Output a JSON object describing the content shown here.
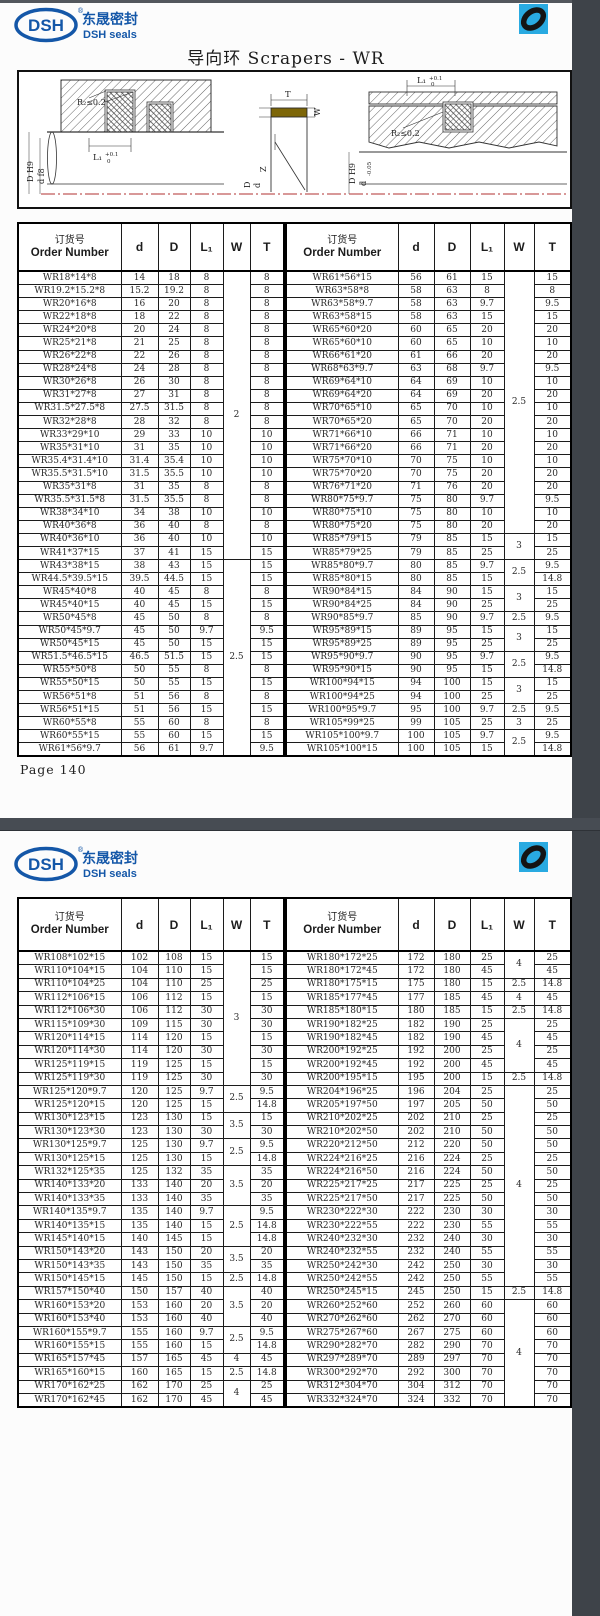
{
  "brand": {
    "logo_text": "DSH",
    "logo_cn": "东晟密封",
    "logo_en": "DSH seals",
    "registered": "®"
  },
  "tables": {
    "header": {
      "order_cn": "订货号",
      "order_en": "Order Number",
      "cols": [
        "d",
        "D",
        "L₁",
        "W",
        "T"
      ]
    }
  },
  "page1": {
    "title": "导向环 Scrapers - WR",
    "page_label": "Page 140",
    "drawing": {
      "r2": "R₂≤0.2",
      "l1": "L₁",
      "tol_top": "+0.1",
      "tol_bot": "0",
      "t": "T",
      "w": "W",
      "z": "Z",
      "d_h9": "D H9",
      "d_f8": "d f8",
      "d_cap": "D",
      "d_low": "d",
      "d_tol_top": "0",
      "d_tol_bot": "-0.05"
    },
    "left_table": {
      "rows": [
        [
          "WR18*14*8",
          "14",
          "18",
          "8",
          "8"
        ],
        [
          "WR19.2*15.2*8",
          "15.2",
          "19.2",
          "8",
          "8"
        ],
        [
          "WR20*16*8",
          "16",
          "20",
          "8",
          "8"
        ],
        [
          "WR22*18*8",
          "18",
          "22",
          "8",
          "8"
        ],
        [
          "WR24*20*8",
          "20",
          "24",
          "8",
          "8"
        ],
        [
          "WR25*21*8",
          "21",
          "25",
          "8",
          "8"
        ],
        [
          "WR26*22*8",
          "22",
          "26",
          "8",
          "8"
        ],
        [
          "WR28*24*8",
          "24",
          "28",
          "8",
          "8"
        ],
        [
          "WR30*26*8",
          "26",
          "30",
          "8",
          "8"
        ],
        [
          "WR31*27*8",
          "27",
          "31",
          "8",
          "8"
        ],
        [
          "WR31.5*27.5*8",
          "27.5",
          "31.5",
          "8",
          "8"
        ],
        [
          "WR32*28*8",
          "28",
          "32",
          "8",
          "8"
        ],
        [
          "WR33*29*10",
          "29",
          "33",
          "10",
          "10"
        ],
        [
          "WR35*31*10",
          "31",
          "35",
          "10",
          "10"
        ],
        [
          "WR35.4*31.4*10",
          "31.4",
          "35.4",
          "10",
          "10"
        ],
        [
          "WR35.5*31.5*10",
          "31.5",
          "35.5",
          "10",
          "10"
        ],
        [
          "WR35*31*8",
          "31",
          "35",
          "8",
          "8"
        ],
        [
          "WR35.5*31.5*8",
          "31.5",
          "35.5",
          "8",
          "8"
        ],
        [
          "WR38*34*10",
          "34",
          "38",
          "10",
          "10"
        ],
        [
          "WR40*36*8",
          "36",
          "40",
          "8",
          "8"
        ],
        [
          "WR40*36*10",
          "36",
          "40",
          "10",
          "10"
        ],
        [
          "WR41*37*15",
          "37",
          "41",
          "15",
          "15"
        ],
        [
          "WR43*38*15",
          "38",
          "43",
          "15",
          "15"
        ],
        [
          "WR44.5*39.5*15",
          "39.5",
          "44.5",
          "15",
          "15"
        ],
        [
          "WR45*40*8",
          "40",
          "45",
          "8",
          "8"
        ],
        [
          "WR45*40*15",
          "40",
          "45",
          "15",
          "15"
        ],
        [
          "WR50*45*8",
          "45",
          "50",
          "8",
          "8"
        ],
        [
          "WR50*45*9.7",
          "45",
          "50",
          "9.7",
          "9.5"
        ],
        [
          "WR50*45*15",
          "45",
          "50",
          "15",
          "15"
        ],
        [
          "WR51.5*46.5*15",
          "46.5",
          "51.5",
          "15",
          "15"
        ],
        [
          "WR55*50*8",
          "50",
          "55",
          "8",
          "8"
        ],
        [
          "WR55*50*15",
          "50",
          "55",
          "15",
          "15"
        ],
        [
          "WR56*51*8",
          "51",
          "56",
          "8",
          "8"
        ],
        [
          "WR56*51*15",
          "51",
          "56",
          "15",
          "15"
        ],
        [
          "WR60*55*8",
          "55",
          "60",
          "8",
          "8"
        ],
        [
          "WR60*55*15",
          "55",
          "60",
          "15",
          "15"
        ],
        [
          "WR61*56*9.7",
          "56",
          "61",
          "9.7",
          "9.5"
        ]
      ],
      "w_spans": [
        [
          "2",
          22
        ],
        [
          "2.5",
          15
        ]
      ]
    },
    "right_table": {
      "rows": [
        [
          "WR61*56*15",
          "56",
          "61",
          "15",
          "15"
        ],
        [
          "WR63*58*8",
          "58",
          "63",
          "8",
          "8"
        ],
        [
          "WR63*58*9.7",
          "58",
          "63",
          "9.7",
          "9.5"
        ],
        [
          "WR63*58*15",
          "58",
          "63",
          "15",
          "15"
        ],
        [
          "WR65*60*20",
          "60",
          "65",
          "20",
          "20"
        ],
        [
          "WR65*60*10",
          "60",
          "65",
          "10",
          "10"
        ],
        [
          "WR66*61*20",
          "61",
          "66",
          "20",
          "20"
        ],
        [
          "WR68*63*9.7",
          "63",
          "68",
          "9.7",
          "9.5"
        ],
        [
          "WR69*64*10",
          "64",
          "69",
          "10",
          "10"
        ],
        [
          "WR69*64*20",
          "64",
          "69",
          "20",
          "20"
        ],
        [
          "WR70*65*10",
          "65",
          "70",
          "10",
          "10"
        ],
        [
          "WR70*65*20",
          "65",
          "70",
          "20",
          "20"
        ],
        [
          "WR71*66*10",
          "66",
          "71",
          "10",
          "10"
        ],
        [
          "WR71*66*20",
          "66",
          "71",
          "20",
          "20"
        ],
        [
          "WR75*70*10",
          "70",
          "75",
          "10",
          "10"
        ],
        [
          "WR75*70*20",
          "70",
          "75",
          "20",
          "20"
        ],
        [
          "WR76*71*20",
          "71",
          "76",
          "20",
          "20"
        ],
        [
          "WR80*75*9.7",
          "75",
          "80",
          "9.7",
          "9.5"
        ],
        [
          "WR80*75*10",
          "75",
          "80",
          "10",
          "10"
        ],
        [
          "WR80*75*20",
          "75",
          "80",
          "20",
          "20"
        ],
        [
          "WR85*79*15",
          "79",
          "85",
          "15",
          "15"
        ],
        [
          "WR85*79*25",
          "79",
          "85",
          "25",
          "25"
        ],
        [
          "WR85*80*9.7",
          "80",
          "85",
          "9.7",
          "9.5"
        ],
        [
          "WR85*80*15",
          "80",
          "85",
          "15",
          "14.8"
        ],
        [
          "WR90*84*15",
          "84",
          "90",
          "15",
          "15"
        ],
        [
          "WR90*84*25",
          "84",
          "90",
          "25",
          "25"
        ],
        [
          "WR90*85*9.7",
          "85",
          "90",
          "9.7",
          "9.5"
        ],
        [
          "WR95*89*15",
          "89",
          "95",
          "15",
          "15"
        ],
        [
          "WR95*89*25",
          "89",
          "95",
          "25",
          "25"
        ],
        [
          "WR95*90*9.7",
          "90",
          "95",
          "9.7",
          "9.5"
        ],
        [
          "WR95*90*15",
          "90",
          "95",
          "15",
          "14.8"
        ],
        [
          "WR100*94*15",
          "94",
          "100",
          "15",
          "15"
        ],
        [
          "WR100*94*25",
          "94",
          "100",
          "25",
          "25"
        ],
        [
          "WR100*95*9.7",
          "95",
          "100",
          "9.7",
          "9.5"
        ],
        [
          "WR105*99*25",
          "99",
          "105",
          "25",
          "25"
        ],
        [
          "WR105*100*9.7",
          "100",
          "105",
          "9.7",
          "9.5"
        ],
        [
          "WR105*100*15",
          "100",
          "105",
          "15",
          "14.8"
        ]
      ],
      "w_spans": [
        [
          "2.5",
          20
        ],
        [
          "3",
          2
        ],
        [
          "2.5",
          2
        ],
        [
          "3",
          2
        ],
        [
          "2.5",
          1
        ],
        [
          "3",
          2
        ],
        [
          "2.5",
          2
        ],
        [
          "3",
          2
        ],
        [
          "2.5",
          1
        ],
        [
          "3",
          1
        ],
        [
          "2.5",
          2
        ]
      ]
    }
  },
  "page2": {
    "left_table": {
      "rows": [
        [
          "WR108*102*15",
          "102",
          "108",
          "15",
          "15"
        ],
        [
          "WR110*104*15",
          "104",
          "110",
          "15",
          "15"
        ],
        [
          "WR110*104*25",
          "104",
          "110",
          "25",
          "25"
        ],
        [
          "WR112*106*15",
          "106",
          "112",
          "15",
          "15"
        ],
        [
          "WR112*106*30",
          "106",
          "112",
          "30",
          "30"
        ],
        [
          "WR115*109*30",
          "109",
          "115",
          "30",
          "30"
        ],
        [
          "WR120*114*15",
          "114",
          "120",
          "15",
          "15"
        ],
        [
          "WR120*114*30",
          "114",
          "120",
          "30",
          "30"
        ],
        [
          "WR125*119*15",
          "119",
          "125",
          "15",
          "15"
        ],
        [
          "WR125*119*30",
          "119",
          "125",
          "30",
          "30"
        ],
        [
          "WR125*120*9.7",
          "120",
          "125",
          "9.7",
          "9.5"
        ],
        [
          "WR125*120*15",
          "120",
          "125",
          "15",
          "14.8"
        ],
        [
          "WR130*123*15",
          "123",
          "130",
          "15",
          "15"
        ],
        [
          "WR130*123*30",
          "123",
          "130",
          "30",
          "30"
        ],
        [
          "WR130*125*9.7",
          "125",
          "130",
          "9.7",
          "9.5"
        ],
        [
          "WR130*125*15",
          "125",
          "130",
          "15",
          "14.8"
        ],
        [
          "WR132*125*35",
          "125",
          "132",
          "35",
          "35"
        ],
        [
          "WR140*133*20",
          "133",
          "140",
          "20",
          "20"
        ],
        [
          "WR140*133*35",
          "133",
          "140",
          "35",
          "35"
        ],
        [
          "WR140*135*9.7",
          "135",
          "140",
          "9.7",
          "9.5"
        ],
        [
          "WR140*135*15",
          "135",
          "140",
          "15",
          "14.8"
        ],
        [
          "WR145*140*15",
          "140",
          "145",
          "15",
          "14.8"
        ],
        [
          "WR150*143*20",
          "143",
          "150",
          "20",
          "20"
        ],
        [
          "WR150*143*35",
          "143",
          "150",
          "35",
          "35"
        ],
        [
          "WR150*145*15",
          "145",
          "150",
          "15",
          "14.8"
        ],
        [
          "WR157*150*40",
          "150",
          "157",
          "40",
          "40"
        ],
        [
          "WR160*153*20",
          "153",
          "160",
          "20",
          "20"
        ],
        [
          "WR160*153*40",
          "153",
          "160",
          "40",
          "40"
        ],
        [
          "WR160*155*9.7",
          "155",
          "160",
          "9.7",
          "9.5"
        ],
        [
          "WR160*155*15",
          "155",
          "160",
          "15",
          "14.8"
        ],
        [
          "WR165*157*45",
          "157",
          "165",
          "45",
          "45"
        ],
        [
          "WR165*160*15",
          "160",
          "165",
          "15",
          "14.8"
        ],
        [
          "WR170*162*25",
          "162",
          "170",
          "25",
          "25"
        ],
        [
          "WR170*162*45",
          "162",
          "170",
          "45",
          "45"
        ]
      ],
      "w_spans": [
        [
          "3",
          10
        ],
        [
          "2.5",
          2
        ],
        [
          "3.5",
          2
        ],
        [
          "2.5",
          2
        ],
        [
          "3.5",
          3
        ],
        [
          "2.5",
          3
        ],
        [
          "3.5",
          2
        ],
        [
          "2.5",
          1
        ],
        [
          "3.5",
          3
        ],
        [
          "2.5",
          2
        ],
        [
          "4",
          1
        ],
        [
          "2.5",
          1
        ],
        [
          "4",
          2
        ]
      ]
    },
    "right_table": {
      "rows": [
        [
          "WR180*172*25",
          "172",
          "180",
          "25",
          "25"
        ],
        [
          "WR180*172*45",
          "172",
          "180",
          "45",
          "45"
        ],
        [
          "WR180*175*15",
          "175",
          "180",
          "15",
          "14.8"
        ],
        [
          "WR185*177*45",
          "177",
          "185",
          "45",
          "45"
        ],
        [
          "WR185*180*15",
          "180",
          "185",
          "15",
          "14.8"
        ],
        [
          "WR190*182*25",
          "182",
          "190",
          "25",
          "25"
        ],
        [
          "WR190*182*45",
          "182",
          "190",
          "45",
          "45"
        ],
        [
          "WR200*192*25",
          "192",
          "200",
          "25",
          "25"
        ],
        [
          "WR200*192*45",
          "192",
          "200",
          "45",
          "45"
        ],
        [
          "WR200*195*15",
          "195",
          "200",
          "15",
          "14.8"
        ],
        [
          "WR204*196*25",
          "196",
          "204",
          "25",
          "25"
        ],
        [
          "WR205*197*50",
          "197",
          "205",
          "50",
          "50"
        ],
        [
          "WR210*202*25",
          "202",
          "210",
          "25",
          "25"
        ],
        [
          "WR210*202*50",
          "202",
          "210",
          "50",
          "50"
        ],
        [
          "WR220*212*50",
          "212",
          "220",
          "50",
          "50"
        ],
        [
          "WR224*216*25",
          "216",
          "224",
          "25",
          "25"
        ],
        [
          "WR224*216*50",
          "216",
          "224",
          "50",
          "50"
        ],
        [
          "WR225*217*25",
          "217",
          "225",
          "25",
          "25"
        ],
        [
          "WR225*217*50",
          "217",
          "225",
          "50",
          "50"
        ],
        [
          "WR230*222*30",
          "222",
          "230",
          "30",
          "30"
        ],
        [
          "WR230*222*55",
          "222",
          "230",
          "55",
          "55"
        ],
        [
          "WR240*232*30",
          "232",
          "240",
          "30",
          "30"
        ],
        [
          "WR240*232*55",
          "232",
          "240",
          "55",
          "55"
        ],
        [
          "WR250*242*30",
          "242",
          "250",
          "30",
          "30"
        ],
        [
          "WR250*242*55",
          "242",
          "250",
          "55",
          "55"
        ],
        [
          "WR250*245*15",
          "245",
          "250",
          "15",
          "14.8"
        ],
        [
          "WR260*252*60",
          "252",
          "260",
          "60",
          "60"
        ],
        [
          "WR270*262*60",
          "262",
          "270",
          "60",
          "60"
        ],
        [
          "WR275*267*60",
          "267",
          "275",
          "60",
          "60"
        ],
        [
          "WR290*282*70",
          "282",
          "290",
          "70",
          "70"
        ],
        [
          "WR297*289*70",
          "289",
          "297",
          "70",
          "70"
        ],
        [
          "WR300*292*70",
          "292",
          "300",
          "70",
          "70"
        ],
        [
          "WR312*304*70",
          "304",
          "312",
          "70",
          "70"
        ],
        [
          "WR332*324*70",
          "324",
          "332",
          "70",
          "70"
        ]
      ],
      "w_spans": [
        [
          "4",
          2
        ],
        [
          "2.5",
          1
        ],
        [
          "4",
          1
        ],
        [
          "2.5",
          1
        ],
        [
          "4",
          4
        ],
        [
          "2.5",
          1
        ],
        [
          "4",
          15
        ],
        [
          "2.5",
          1
        ],
        [
          "4",
          8
        ]
      ]
    }
  },
  "colors": {
    "accent_blue": "#1457a8",
    "icon_bg": "#29aae1",
    "seal_gold": "#7d6608",
    "centerline_red": "#c05a5a"
  }
}
